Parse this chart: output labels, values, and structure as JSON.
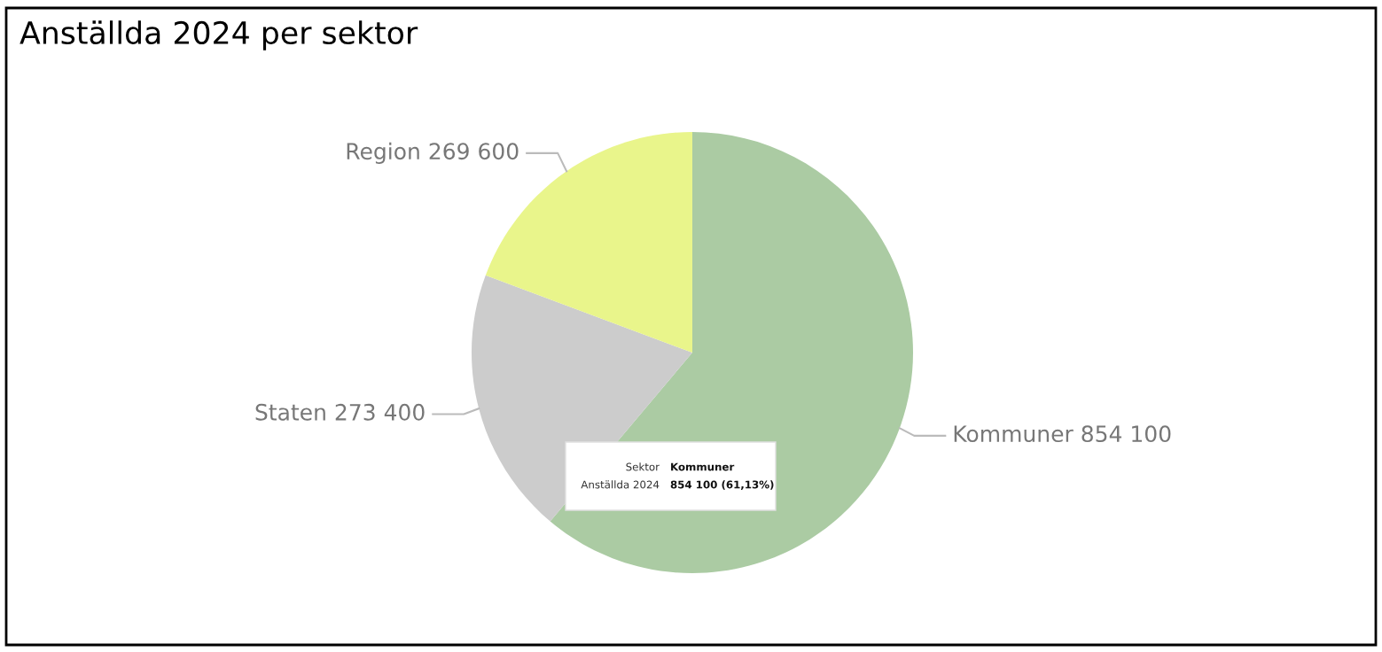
{
  "chart_data": {
    "type": "pie",
    "title": "Anställda 2024 per sektor",
    "categories": [
      "Kommuner",
      "Staten",
      "Region"
    ],
    "values": [
      854100,
      273400,
      269600
    ],
    "colors": [
      "#abcba3",
      "#cccccc",
      "#e9f58b"
    ],
    "value_labels": [
      "854 100",
      "273 400",
      "269 600"
    ],
    "annotations": [
      "Sektor",
      "Kommuner",
      "Anställda 2024",
      "854 100 (61,13%)"
    ],
    "legend": false
  }
}
